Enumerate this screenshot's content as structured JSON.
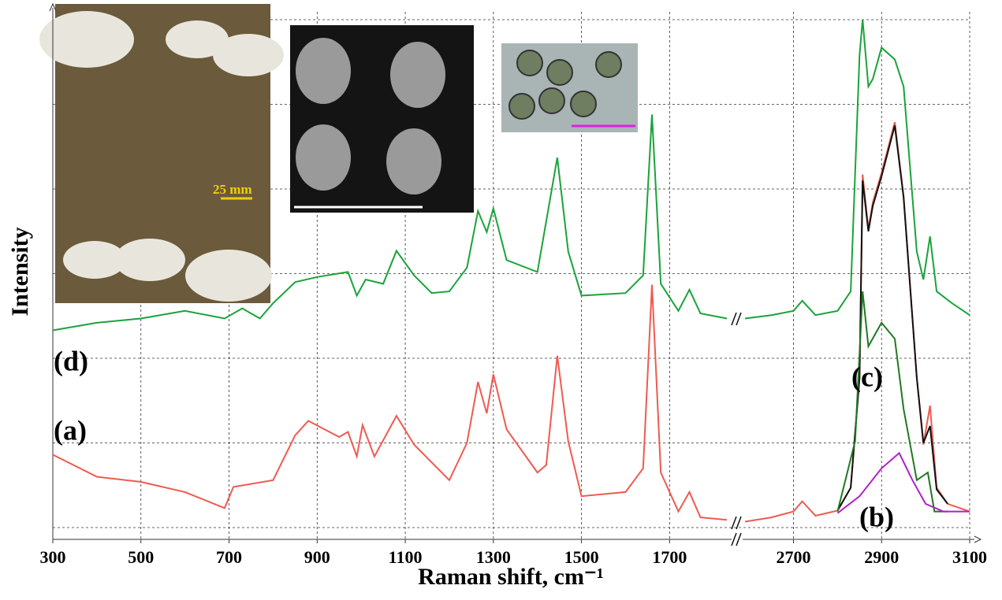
{
  "chart_data": {
    "type": "line",
    "xlabel": "Raman shift, cm⁻¹",
    "ylabel": "Intensity",
    "x_segments": [
      {
        "xlim": [
          300,
          1830
        ],
        "xticks": [
          300,
          500,
          700,
          900,
          1100,
          1300,
          1500,
          1700
        ]
      },
      {
        "xlim": [
          2590,
          3100
        ],
        "xticks": [
          2700,
          2900,
          3100
        ]
      }
    ],
    "ylim": [
      0,
      6
    ],
    "yticks": [
      0,
      1,
      2,
      3,
      4,
      5,
      6
    ],
    "grid": true,
    "annotations": [
      "25 mm"
    ],
    "series": [
      {
        "name": "(d)",
        "color": "#1aa33a",
        "x": [
          300,
          400,
          500,
          600,
          690,
          730,
          770,
          800,
          850,
          900,
          970,
          990,
          1010,
          1050,
          1080,
          1120,
          1160,
          1200,
          1240,
          1265,
          1285,
          1300,
          1330,
          1400,
          1445,
          1470,
          1500,
          1600,
          1640,
          1660,
          1680,
          1720,
          1745,
          1770,
          1830,
          2590,
          2650,
          2700,
          2720,
          2750,
          2800,
          2830,
          2850,
          2857,
          2870,
          2880,
          2900,
          2930,
          2950,
          2980,
          2995,
          3010,
          3025,
          3060,
          3100
        ],
        "values": [
          2.33,
          2.42,
          2.47,
          2.56,
          2.47,
          2.59,
          2.47,
          2.65,
          2.9,
          2.96,
          3.02,
          2.74,
          2.93,
          2.88,
          3.27,
          2.98,
          2.77,
          2.79,
          3.07,
          3.74,
          3.49,
          3.77,
          3.16,
          3.02,
          4.37,
          3.26,
          2.74,
          2.77,
          2.98,
          4.88,
          2.88,
          2.56,
          2.81,
          2.53,
          2.47,
          2.47,
          2.51,
          2.56,
          2.68,
          2.51,
          2.56,
          2.79,
          5.58,
          6.0,
          5.21,
          5.3,
          5.67,
          5.53,
          5.21,
          3.26,
          2.93,
          3.44,
          2.79,
          2.65,
          2.51
        ]
      },
      {
        "name": "(a)",
        "color": "#ef5a50",
        "x": [
          300,
          400,
          500,
          600,
          690,
          710,
          800,
          850,
          880,
          950,
          970,
          990,
          1003,
          1030,
          1080,
          1120,
          1200,
          1240,
          1265,
          1285,
          1300,
          1330,
          1400,
          1420,
          1445,
          1470,
          1500,
          1600,
          1640,
          1660,
          1680,
          1720,
          1745,
          1770,
          1830,
          2590,
          2650,
          2700,
          2720,
          2750,
          2800,
          2830,
          2850,
          2857,
          2870,
          2880,
          2900,
          2930,
          2950,
          2980,
          2995,
          3010,
          3025,
          3050,
          3100
        ],
        "values": [
          0.86,
          0.6,
          0.54,
          0.42,
          0.23,
          0.48,
          0.56,
          1.09,
          1.26,
          1.07,
          1.13,
          0.84,
          1.21,
          0.84,
          1.32,
          0.98,
          0.56,
          1.0,
          1.72,
          1.35,
          1.81,
          1.16,
          0.65,
          0.74,
          2.03,
          1.02,
          0.37,
          0.42,
          0.7,
          2.87,
          0.65,
          0.19,
          0.42,
          0.12,
          0.09,
          0.07,
          0.12,
          0.19,
          0.31,
          0.14,
          0.2,
          0.47,
          1.77,
          4.17,
          3.53,
          3.84,
          4.19,
          4.79,
          3.91,
          1.77,
          0.98,
          1.44,
          0.47,
          0.28,
          0.19
        ]
      },
      {
        "name": "(c)",
        "color": "#111111",
        "x": [
          2800,
          2830,
          2850,
          2857,
          2870,
          2880,
          2900,
          2930,
          2950,
          2980,
          2995,
          3010,
          3025,
          3050
        ],
        "values": [
          0.2,
          0.47,
          1.77,
          4.1,
          3.5,
          3.8,
          4.15,
          4.75,
          3.9,
          1.77,
          1.0,
          1.2,
          0.45,
          0.28
        ]
      },
      {
        "color": "#1f7a1f",
        "x": [
          2800,
          2840,
          2857,
          2870,
          2900,
          2930,
          2950,
          2980,
          3005,
          3020,
          3050
        ],
        "values": [
          0.19,
          1.02,
          2.79,
          2.14,
          2.42,
          2.23,
          1.4,
          0.56,
          0.65,
          0.19,
          0.19
        ]
      },
      {
        "name": "(b)",
        "color": "#b020c8",
        "x": [
          2800,
          2850,
          2900,
          2940,
          2970,
          3000,
          3040,
          3100
        ],
        "values": [
          0.17,
          0.37,
          0.7,
          0.88,
          0.56,
          0.28,
          0.19,
          0.19
        ]
      }
    ]
  }
}
